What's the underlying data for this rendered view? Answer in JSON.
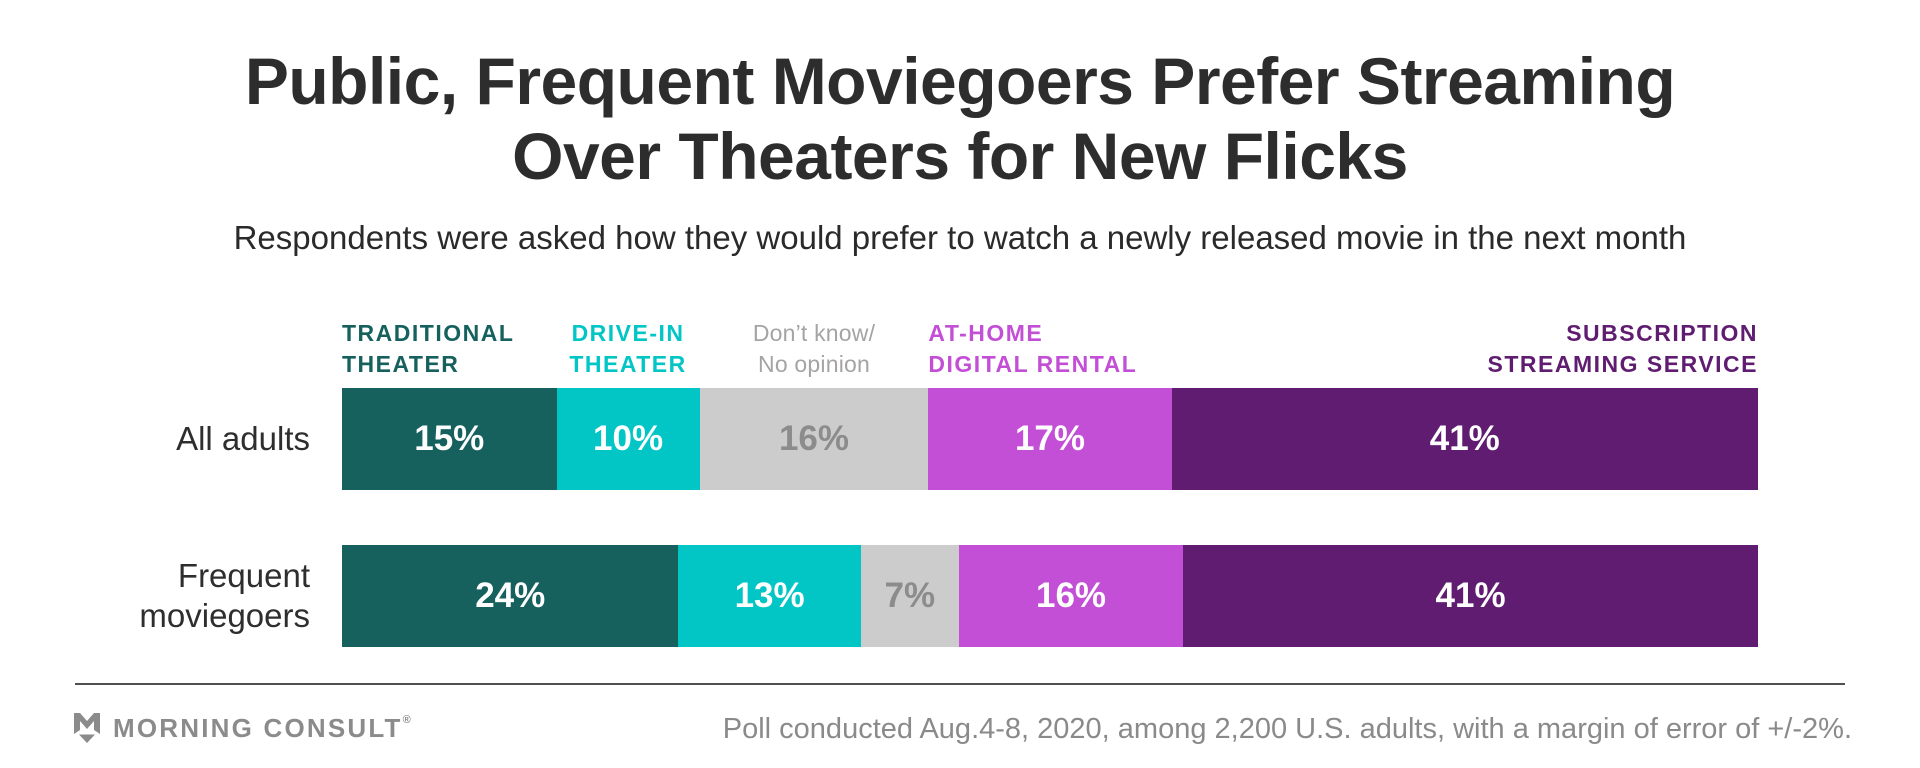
{
  "title": {
    "line1": "Public, Frequent Moviegoers Prefer Streaming",
    "line2": "Over Theaters for New Flicks"
  },
  "subtitle": "Respondents were asked how they would prefer to watch a newly released movie in the next month",
  "chart_data": {
    "type": "bar",
    "orientation": "horizontal",
    "stacked": true,
    "unit": "%",
    "legend_position": "above-bars",
    "grid": false,
    "segments": [
      {
        "name": "traditional-theater",
        "header_lines": [
          "TRADITIONAL",
          "THEATER"
        ],
        "color": "#16605E",
        "header_color": "#16605E",
        "value_text_color": "#ffffff",
        "header_anchor": "left",
        "header_bold": true
      },
      {
        "name": "drive-in-theater",
        "header_lines": [
          "DRIVE-IN",
          "THEATER"
        ],
        "color": "#02C5C6",
        "header_color": "#02C5C6",
        "value_text_color": "#ffffff",
        "header_anchor": "center",
        "header_bold": true
      },
      {
        "name": "dont-know-no-opinion",
        "header_lines": [
          "Don’t know/",
          "No opinion"
        ],
        "color": "#CDCCCC",
        "header_color": "#A5A3A3",
        "value_text_color": "#8C8C8C",
        "header_anchor": "center",
        "header_bold": false
      },
      {
        "name": "at-home-digital-rental",
        "header_lines": [
          "AT-HOME",
          "DIGITAL RENTAL"
        ],
        "color": "#C24FD5",
        "header_color": "#C24FD5",
        "value_text_color": "#ffffff",
        "header_anchor": "left",
        "header_bold": true
      },
      {
        "name": "subscription-streaming-service",
        "header_lines": [
          "SUBSCRIPTION",
          "STREAMING SERVICE"
        ],
        "color": "#5F1C70",
        "header_color": "#5F1C70",
        "value_text_color": "#ffffff",
        "header_anchor": "right",
        "header_bold": true
      }
    ],
    "rows": [
      {
        "label_lines": [
          "All adults"
        ],
        "values": [
          15,
          10,
          16,
          17,
          41
        ],
        "value_labels": [
          "15%",
          "10%",
          "16%",
          "17%",
          "41%"
        ]
      },
      {
        "label_lines": [
          "Frequent",
          "moviegoers"
        ],
        "values": [
          24,
          13,
          7,
          16,
          41
        ],
        "value_labels": [
          "24%",
          "13%",
          "7%",
          "16%",
          "41%"
        ]
      }
    ]
  },
  "footer": {
    "brand": "MORNING CONSULT",
    "brand_mark": "®",
    "note": "Poll conducted Aug.4-8, 2020, among 2,200 U.S. adults, with a margin of error of +/-2%."
  },
  "colors": {
    "background": "#ffffff",
    "title_text": "#2d2d2d",
    "row_label_text": "#2e2e2e",
    "divider": "#4f4f4f",
    "footer_text": "#8a8a8a"
  }
}
